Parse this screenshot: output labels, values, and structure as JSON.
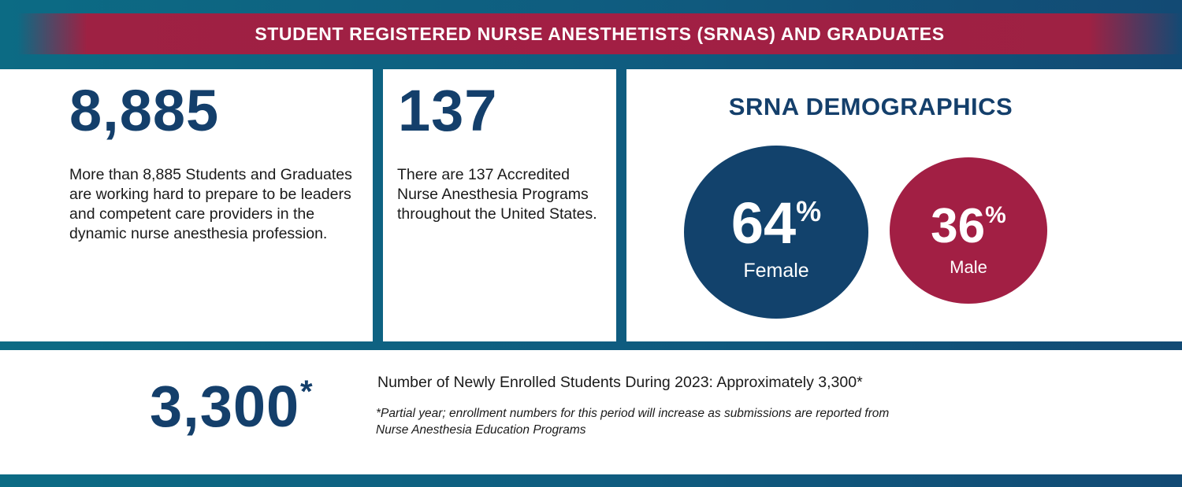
{
  "header": {
    "title": "STUDENT REGISTERED NURSE ANESTHETISTS (SRNAS) AND GRADUATES",
    "bar_color": "#a21f44"
  },
  "students": {
    "number": "8,885",
    "description": "More than 8,885 Students and Graduates are working hard to prepare to be leaders and competent care providers in the dynamic nurse anesthesia profession."
  },
  "programs": {
    "number": "137",
    "description": "There are 137 Accredited Nurse Anesthesia Programs throughout the United States."
  },
  "demographics": {
    "title": "SRNA DEMOGRAPHICS",
    "female": {
      "value": "64",
      "unit": "%",
      "label": "Female",
      "color": "#12426c"
    },
    "male": {
      "value": "36",
      "unit": "%",
      "label": "Male",
      "color": "#a21f44"
    }
  },
  "enrollment": {
    "number": "3,300",
    "asterisk": "*",
    "description": "Number of Newly Enrolled Students During 2023: Approximately 3,300*",
    "note": "*Partial year; enrollment numbers for this period will increase as submissions are reported from Nurse Anesthesia Education Programs"
  },
  "colors": {
    "navy": "#143f6b",
    "teal_frame": "#0f5d80",
    "crimson": "#a21f44"
  }
}
